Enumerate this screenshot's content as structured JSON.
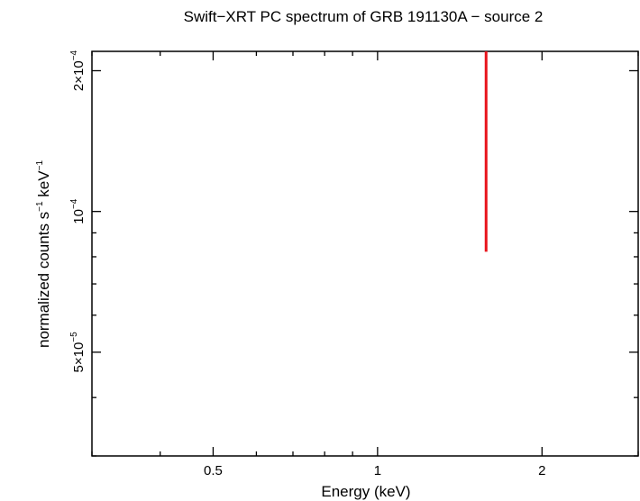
{
  "chart_data": {
    "type": "scatter",
    "title": "Swift−XRT PC spectrum of GRB 191130A − source 2",
    "xlabel": "Energy (keV)",
    "ylabel": {
      "pre": "normalized counts s",
      "sup1": "−1",
      "mid": " keV",
      "sup2": "−1"
    },
    "x_scale": "log",
    "y_scale": "log",
    "xlim": [
      0.3,
      3.0
    ],
    "ylim": [
      3e-05,
      0.00022
    ],
    "x_ticks": [
      {
        "value": 0.5,
        "label": "0.5"
      },
      {
        "value": 1,
        "label": "1"
      },
      {
        "value": 2,
        "label": "2"
      }
    ],
    "y_ticks": [
      {
        "value": 5e-05,
        "mant": "5×10",
        "exp": "−5"
      },
      {
        "value": 0.0001,
        "mant": "10",
        "exp": "−4"
      },
      {
        "value": 0.0002,
        "mant": "2×10",
        "exp": "−4"
      }
    ],
    "series": [
      {
        "color": "#e8141c",
        "points": [
          {
            "x": 1.58,
            "y_low": 8.2e-05,
            "y_high": 0.00022
          }
        ]
      }
    ]
  }
}
